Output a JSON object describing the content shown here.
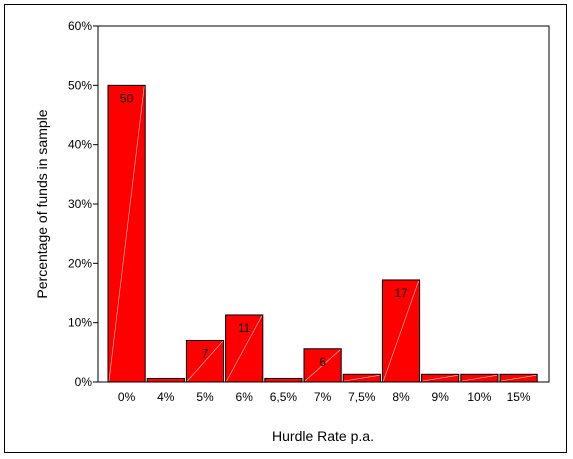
{
  "chart_data": {
    "type": "bar",
    "xlabel": "Hurdle Rate p.a.",
    "ylabel": "Percentage of funds in sample",
    "ylim": [
      0,
      60
    ],
    "yticks": [
      0,
      10,
      20,
      30,
      40,
      50,
      60
    ],
    "ytick_labels": [
      "0%",
      "10%",
      "20%",
      "30%",
      "40%",
      "50%",
      "60%"
    ],
    "categories": [
      "0%",
      "4%",
      "5%",
      "6%",
      "6,5%",
      "7%",
      "7,5%",
      "8%",
      "9%",
      "10%",
      "15%"
    ],
    "values": [
      50,
      0.6,
      7,
      11.3,
      0.6,
      5.6,
      1.3,
      17.2,
      1.3,
      1.3,
      1.3
    ],
    "data_labels": [
      "50",
      "",
      "7",
      "11",
      "",
      "6",
      "",
      "17",
      "",
      "",
      ""
    ],
    "grid": false,
    "colors": {
      "bar_fill": "#ff0000",
      "bar_stroke": "#000000",
      "bar_highlight": "#ffffff"
    }
  }
}
